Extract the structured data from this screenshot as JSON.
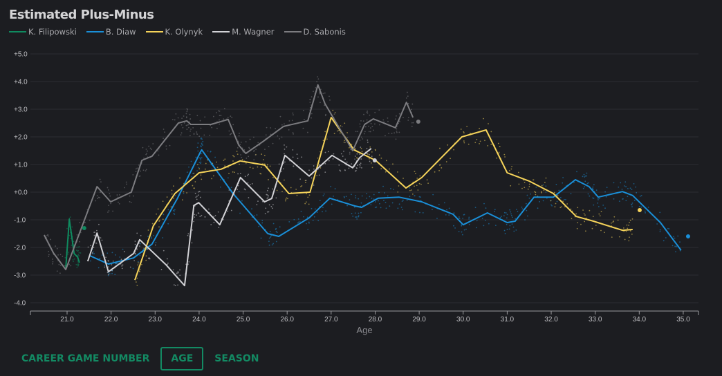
{
  "title": "Estimated Plus-Minus",
  "tabs": [
    {
      "label": "CAREER GAME NUMBER",
      "active": false
    },
    {
      "label": "AGE",
      "active": true
    },
    {
      "label": "SEASON",
      "active": false
    }
  ],
  "chart_data": {
    "type": "line",
    "title": "Estimated Plus-Minus",
    "xlabel": "Age",
    "ylabel": "",
    "xlim": [
      20.17,
      35.35
    ],
    "ylim": [
      -4.3,
      5.0
    ],
    "xticks": [
      "21.0",
      "22.0",
      "23.0",
      "24.0",
      "25.0",
      "26.0",
      "27.0",
      "28.0",
      "29.0",
      "30.0",
      "31.0",
      "32.0",
      "33.0",
      "34.0",
      "35.0"
    ],
    "yticks": [
      "+5.0",
      "+4.0",
      "+3.0",
      "+2.0",
      "+1.0",
      "+0.0",
      "-1.0",
      "-2.0",
      "-3.0",
      "-4.0"
    ],
    "grid": true,
    "legend": "top-left",
    "series": [
      {
        "name": "K. Filipowski",
        "color": "#0f8a5f",
        "x": [
          20.97,
          21.05,
          21.16,
          21.24,
          21.28
        ],
        "y": [
          -2.75,
          -0.98,
          -2.22,
          -2.35,
          -2.55
        ],
        "latest": [
          21.39,
          -1.3
        ]
      },
      {
        "name": "B. Diaw",
        "color": "#1a8fd8",
        "x": [
          21.52,
          21.94,
          22.51,
          22.93,
          23.51,
          24.03,
          24.06,
          24.77,
          25.56,
          25.81,
          26.5,
          26.97,
          27.54,
          27.69,
          28.07,
          28.54,
          29.06,
          29.77,
          30.0,
          30.55,
          31.0,
          31.18,
          31.61,
          32.05,
          32.55,
          32.86,
          33.07,
          33.62,
          33.85,
          34.48,
          34.95
        ],
        "y": [
          -2.3,
          -2.6,
          -2.38,
          -1.88,
          -0.22,
          1.45,
          1.53,
          -0.05,
          -1.5,
          -1.6,
          -0.93,
          -0.22,
          -0.5,
          -0.55,
          -0.22,
          -0.18,
          -0.35,
          -0.8,
          -1.18,
          -0.75,
          -1.1,
          -1.05,
          -0.18,
          -0.18,
          0.45,
          0.2,
          -0.18,
          0.02,
          -0.12,
          -1.1,
          -2.1
        ],
        "latest": [
          35.11,
          -1.6
        ]
      },
      {
        "name": "K. Olynyk",
        "color": "#f5d35a",
        "x": [
          22.54,
          22.96,
          23.45,
          24.0,
          24.5,
          24.93,
          25.49,
          26.04,
          26.52,
          27.0,
          27.52,
          28.01,
          28.7,
          29.06,
          29.97,
          30.52,
          31.0,
          31.5,
          32.05,
          32.57,
          32.96,
          33.62,
          33.85
        ],
        "y": [
          -3.18,
          -1.22,
          -0.05,
          0.7,
          0.83,
          1.13,
          0.98,
          -0.05,
          0.0,
          2.7,
          1.53,
          1.15,
          0.15,
          0.53,
          2.0,
          2.25,
          0.7,
          0.4,
          -0.05,
          -0.88,
          -1.05,
          -1.38,
          -1.35
        ],
        "latest": [
          34.01,
          -0.65
        ]
      },
      {
        "name": "M. Wagner",
        "color": "#d2d2d6",
        "x": [
          21.47,
          21.68,
          21.94,
          22.51,
          22.65,
          23.25,
          23.67,
          23.88,
          23.99,
          24.47,
          24.94,
          25.49,
          25.65,
          25.95,
          26.5,
          27.02,
          27.49,
          27.65,
          27.91
        ],
        "y": [
          -2.5,
          -1.48,
          -2.88,
          -2.22,
          -1.72,
          -2.63,
          -3.38,
          -0.48,
          -0.38,
          -1.18,
          0.53,
          -0.35,
          -0.23,
          1.33,
          0.58,
          1.33,
          0.88,
          1.25,
          1.58
        ],
        "latest": [
          27.99,
          1.15
        ]
      },
      {
        "name": "D. Sabonis",
        "color": "#7c7c80",
        "x": [
          20.48,
          20.69,
          20.97,
          21.68,
          21.99,
          22.46,
          22.7,
          22.93,
          23.53,
          23.72,
          23.81,
          24.27,
          24.66,
          24.9,
          25.06,
          25.45,
          25.92,
          26.47,
          26.7,
          26.86,
          27.49,
          27.76,
          27.96,
          28.46,
          28.71,
          28.86
        ],
        "y": [
          -1.55,
          -2.2,
          -2.8,
          0.2,
          -0.35,
          0.0,
          1.15,
          1.3,
          2.5,
          2.58,
          2.45,
          2.45,
          2.63,
          1.7,
          1.4,
          1.83,
          2.38,
          2.58,
          3.88,
          3.2,
          1.5,
          2.45,
          2.65,
          2.33,
          3.25,
          2.7
        ],
        "latest": [
          28.98,
          2.55
        ]
      }
    ]
  }
}
